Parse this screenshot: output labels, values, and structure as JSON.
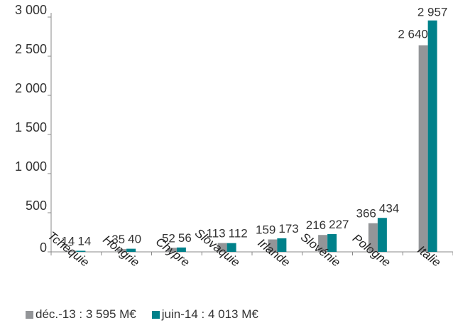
{
  "chart_data": {
    "type": "bar",
    "categories": [
      "Tchéquie",
      "Hongrie",
      "Chypre",
      "Slovaquie",
      "Irlande",
      "Slovénie",
      "Pologne",
      "Italie"
    ],
    "series": [
      {
        "name": "déc.-13 : 3 595 M€",
        "values": [
          14,
          35,
          52,
          113,
          159,
          216,
          366,
          2640
        ],
        "labels": [
          "14",
          "35",
          "52",
          "113",
          "159",
          "216",
          "366",
          "2 640"
        ],
        "color": "#939598"
      },
      {
        "name": "juin-14 : 4 013 M€",
        "values": [
          14,
          40,
          56,
          112,
          173,
          227,
          434,
          2957
        ],
        "labels": [
          "14",
          "40",
          "56",
          "112",
          "173",
          "227",
          "434",
          "2 957"
        ],
        "color": "#00818A"
      }
    ],
    "y_ticks": [
      0,
      500,
      1000,
      1500,
      2000,
      2500,
      3000
    ],
    "y_tick_labels": [
      "0",
      "500",
      "1 000",
      "1 500",
      "2 000",
      "2 500",
      "3 000"
    ],
    "ylim": [
      0,
      3000
    ],
    "grid": false,
    "legend_position": "bottom-left",
    "title": "",
    "xlabel": "",
    "ylabel": ""
  }
}
